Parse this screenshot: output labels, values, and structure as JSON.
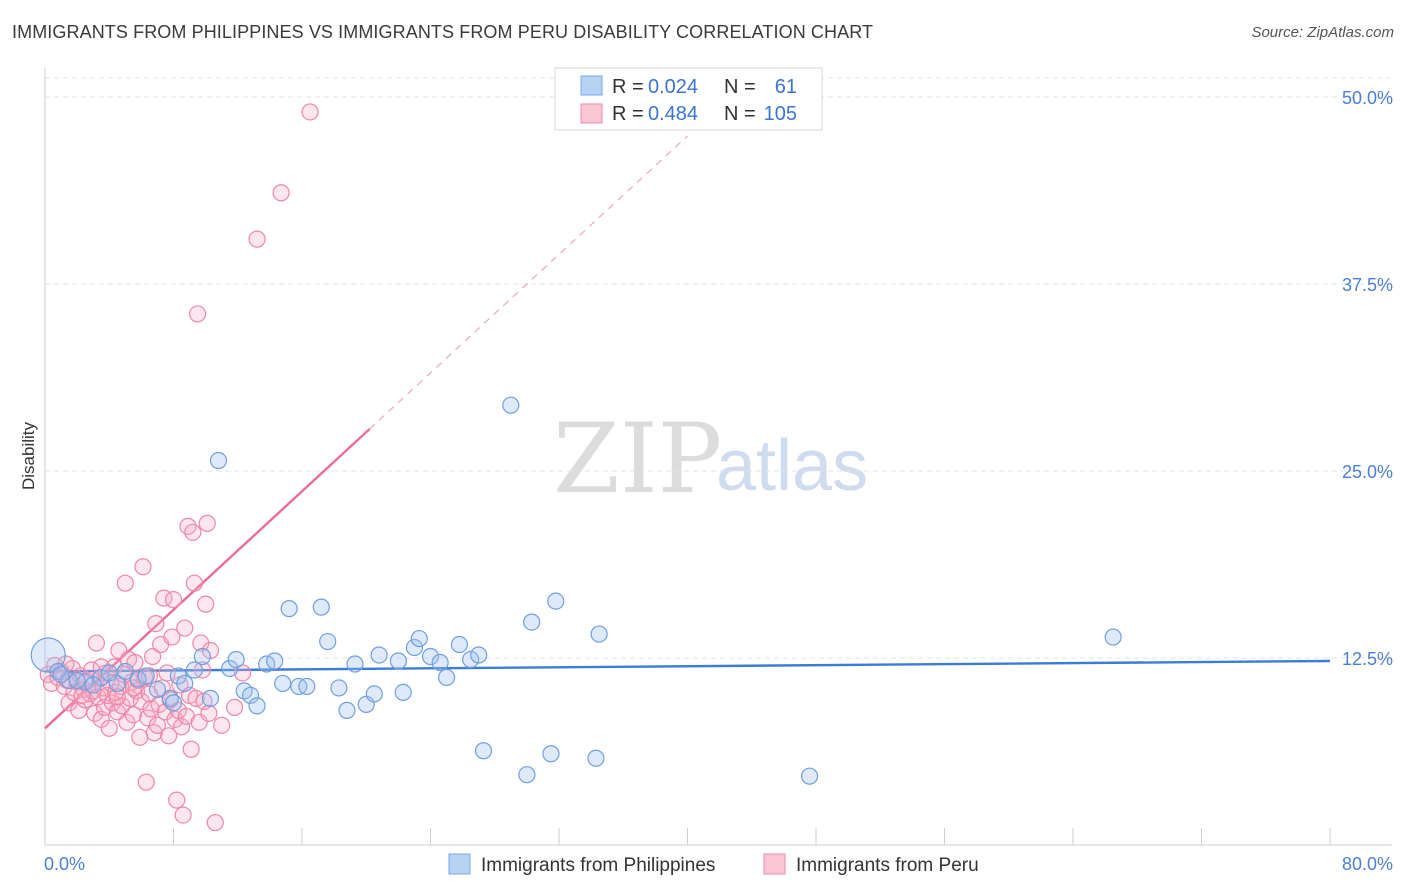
{
  "header": {
    "title": "IMMIGRANTS FROM PHILIPPINES VS IMMIGRANTS FROM PERU DISABILITY CORRELATION CHART",
    "source": "Source: ZipAtlas.com"
  },
  "watermark": {
    "part1": "ZIP",
    "part2": "atlas"
  },
  "legend_box": {
    "rows": [
      {
        "r_label": "R =",
        "r_value": "0.024",
        "n_label": "N =",
        "n_value": "61",
        "color": "#7aaae8"
      },
      {
        "r_label": "R =",
        "r_value": "0.484",
        "n_label": "N =",
        "n_value": "105",
        "color": "#f08aaa"
      }
    ]
  },
  "chart_data": {
    "type": "scatter",
    "title": "IMMIGRANTS FROM PHILIPPINES VS IMMIGRANTS FROM PERU DISABILITY CORRELATION CHART",
    "xlabel": "",
    "ylabel": "Disability",
    "xlim": [
      0,
      80
    ],
    "ylim": [
      0,
      50
    ],
    "x_tick_labels": [
      "0.0%",
      "80.0%"
    ],
    "y_ticks": [
      12.5,
      25.0,
      37.5,
      50.0
    ],
    "y_tick_labels": [
      "12.5%",
      "25.0%",
      "37.5%",
      "50.0%"
    ],
    "grid": true,
    "legend_position": "top-center",
    "series": [
      {
        "name": "Immigrants from Philippines",
        "color": "#7aaae8",
        "trend": {
          "x": [
            0,
            80
          ],
          "y": [
            11.6,
            12.3
          ]
        },
        "points": [
          [
            0.2,
            12.7
          ],
          [
            0.8,
            11.6
          ],
          [
            1.5,
            11.0
          ],
          [
            2.5,
            10.9
          ],
          [
            3.5,
            11.2
          ],
          [
            4.5,
            10.8
          ],
          [
            5.0,
            11.6
          ],
          [
            5.8,
            11.1
          ],
          [
            6.3,
            11.3
          ],
          [
            7.0,
            10.4
          ],
          [
            7.8,
            9.8
          ],
          [
            8.0,
            9.5
          ],
          [
            8.3,
            11.3
          ],
          [
            8.7,
            10.8
          ],
          [
            9.3,
            11.7
          ],
          [
            9.8,
            12.6
          ],
          [
            10.3,
            9.8
          ],
          [
            10.8,
            25.7
          ],
          [
            11.5,
            11.8
          ],
          [
            11.9,
            12.4
          ],
          [
            12.4,
            10.3
          ],
          [
            12.8,
            10.0
          ],
          [
            13.2,
            9.3
          ],
          [
            13.8,
            12.1
          ],
          [
            14.3,
            12.3
          ],
          [
            14.8,
            10.8
          ],
          [
            15.2,
            15.8
          ],
          [
            15.8,
            10.6
          ],
          [
            16.3,
            10.6
          ],
          [
            17.2,
            15.9
          ],
          [
            17.6,
            13.6
          ],
          [
            18.3,
            10.5
          ],
          [
            18.8,
            9.0
          ],
          [
            19.3,
            12.1
          ],
          [
            20.0,
            9.4
          ],
          [
            20.5,
            10.1
          ],
          [
            20.8,
            12.7
          ],
          [
            22.0,
            12.3
          ],
          [
            22.3,
            10.2
          ],
          [
            23.0,
            13.2
          ],
          [
            23.3,
            13.8
          ],
          [
            24.0,
            12.6
          ],
          [
            24.6,
            12.2
          ],
          [
            25.0,
            11.2
          ],
          [
            25.8,
            13.4
          ],
          [
            26.5,
            12.4
          ],
          [
            27.0,
            12.7
          ],
          [
            27.3,
            6.3
          ],
          [
            29.0,
            29.4
          ],
          [
            30.0,
            4.7
          ],
          [
            30.3,
            14.9
          ],
          [
            31.5,
            6.1
          ],
          [
            31.8,
            16.3
          ],
          [
            34.3,
            5.8
          ],
          [
            34.5,
            14.1
          ],
          [
            47.6,
            4.6
          ],
          [
            66.5,
            13.9
          ],
          [
            1.0,
            11.4
          ],
          [
            2.0,
            11.0
          ],
          [
            3.0,
            10.7
          ],
          [
            4.0,
            11.5
          ]
        ]
      },
      {
        "name": "Immigrants from Peru",
        "color": "#f08aaa",
        "trend": {
          "x": [
            0,
            20.2
          ],
          "y": [
            7.8,
            27.8
          ]
        },
        "trend_extension": {
          "x": [
            20.2,
            40.0
          ],
          "y": [
            27.8,
            47.4
          ]
        },
        "points": [
          [
            0.2,
            11.4
          ],
          [
            0.4,
            10.8
          ],
          [
            0.6,
            12.0
          ],
          [
            0.8,
            11.2
          ],
          [
            1.0,
            11.6
          ],
          [
            1.2,
            10.6
          ],
          [
            1.4,
            11.0
          ],
          [
            1.5,
            9.5
          ],
          [
            1.7,
            11.8
          ],
          [
            1.8,
            10.2
          ],
          [
            2.0,
            10.9
          ],
          [
            2.1,
            9.0
          ],
          [
            2.2,
            11.3
          ],
          [
            2.4,
            10.4
          ],
          [
            2.5,
            9.7
          ],
          [
            2.6,
            11.0
          ],
          [
            2.8,
            10.1
          ],
          [
            2.9,
            11.7
          ],
          [
            3.0,
            10.3
          ],
          [
            3.1,
            8.8
          ],
          [
            3.2,
            13.5
          ],
          [
            3.3,
            9.9
          ],
          [
            3.4,
            11.1
          ],
          [
            3.5,
            8.4
          ],
          [
            3.6,
            10.5
          ],
          [
            3.7,
            9.2
          ],
          [
            3.8,
            11.5
          ],
          [
            3.9,
            10.0
          ],
          [
            4.0,
            7.8
          ],
          [
            4.1,
            10.8
          ],
          [
            4.2,
            9.5
          ],
          [
            4.3,
            11.9
          ],
          [
            4.4,
            10.2
          ],
          [
            4.5,
            8.9
          ],
          [
            4.6,
            13.0
          ],
          [
            4.7,
            10.6
          ],
          [
            4.8,
            9.3
          ],
          [
            4.9,
            11.4
          ],
          [
            5.0,
            17.5
          ],
          [
            5.1,
            8.2
          ],
          [
            5.2,
            12.4
          ],
          [
            5.3,
            9.8
          ],
          [
            5.4,
            10.9
          ],
          [
            5.5,
            8.7
          ],
          [
            5.6,
            12.2
          ],
          [
            5.7,
            10.3
          ],
          [
            5.8,
            11.0
          ],
          [
            5.9,
            7.2
          ],
          [
            6.0,
            9.6
          ],
          [
            6.1,
            18.6
          ],
          [
            6.2,
            11.2
          ],
          [
            6.3,
            4.2
          ],
          [
            6.4,
            8.5
          ],
          [
            6.5,
            10.1
          ],
          [
            6.6,
            9.1
          ],
          [
            6.7,
            12.6
          ],
          [
            6.8,
            7.5
          ],
          [
            6.9,
            14.8
          ],
          [
            7.0,
            8.0
          ],
          [
            7.1,
            9.4
          ],
          [
            7.2,
            13.4
          ],
          [
            7.3,
            10.5
          ],
          [
            7.4,
            16.5
          ],
          [
            7.5,
            8.9
          ],
          [
            7.6,
            11.5
          ],
          [
            7.7,
            7.3
          ],
          [
            7.8,
            9.7
          ],
          [
            7.9,
            13.9
          ],
          [
            8.0,
            16.4
          ],
          [
            8.1,
            8.4
          ],
          [
            8.2,
            3.0
          ],
          [
            8.3,
            9.0
          ],
          [
            8.4,
            10.7
          ],
          [
            8.5,
            7.9
          ],
          [
            8.6,
            2.0
          ],
          [
            8.7,
            14.5
          ],
          [
            8.8,
            8.6
          ],
          [
            8.9,
            21.3
          ],
          [
            9.0,
            10.0
          ],
          [
            9.1,
            6.4
          ],
          [
            9.2,
            20.9
          ],
          [
            9.3,
            17.5
          ],
          [
            9.4,
            9.8
          ],
          [
            9.5,
            35.5
          ],
          [
            9.6,
            8.2
          ],
          [
            9.7,
            13.5
          ],
          [
            9.8,
            11.7
          ],
          [
            9.9,
            9.6
          ],
          [
            10.0,
            16.1
          ],
          [
            10.1,
            21.5
          ],
          [
            10.2,
            8.8
          ],
          [
            10.3,
            13.0
          ],
          [
            10.6,
            1.5
          ],
          [
            11.0,
            8.0
          ],
          [
            11.8,
            9.2
          ],
          [
            12.3,
            11.5
          ],
          [
            13.2,
            40.5
          ],
          [
            14.7,
            43.6
          ],
          [
            16.5,
            49.0
          ],
          [
            1.3,
            12.1
          ],
          [
            2.3,
            10.0
          ],
          [
            3.5,
            11.9
          ],
          [
            4.5,
            9.9
          ],
          [
            5.5,
            10.5
          ],
          [
            6.5,
            11.3
          ]
        ]
      }
    ]
  }
}
